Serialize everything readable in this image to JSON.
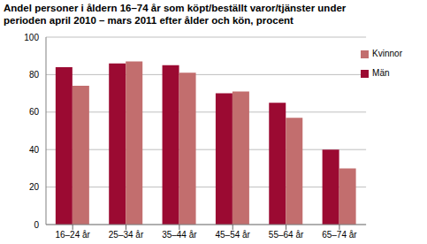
{
  "chart_data": {
    "type": "bar",
    "title": "Andel personer i åldern 16–74 år som köpt/beställt varor/tjänster under perioden april 2010 – mars 2011 efter ålder och kön, procent",
    "categories": [
      "16–24 år",
      "25–34 år",
      "35–44 år",
      "45–54 år",
      "55–64 år",
      "65–74 år"
    ],
    "series": [
      {
        "name": "Män",
        "color": "#9b0a32",
        "values": [
          84,
          86,
          85,
          70,
          65,
          40
        ]
      },
      {
        "name": "Kvinnor",
        "color": "#c26e6e",
        "values": [
          74,
          87,
          81,
          71,
          57,
          30
        ]
      }
    ],
    "ylim": [
      0,
      100
    ],
    "yticks": [
      0,
      20,
      40,
      60,
      80,
      100
    ],
    "grid": true,
    "legend": "upper right"
  }
}
